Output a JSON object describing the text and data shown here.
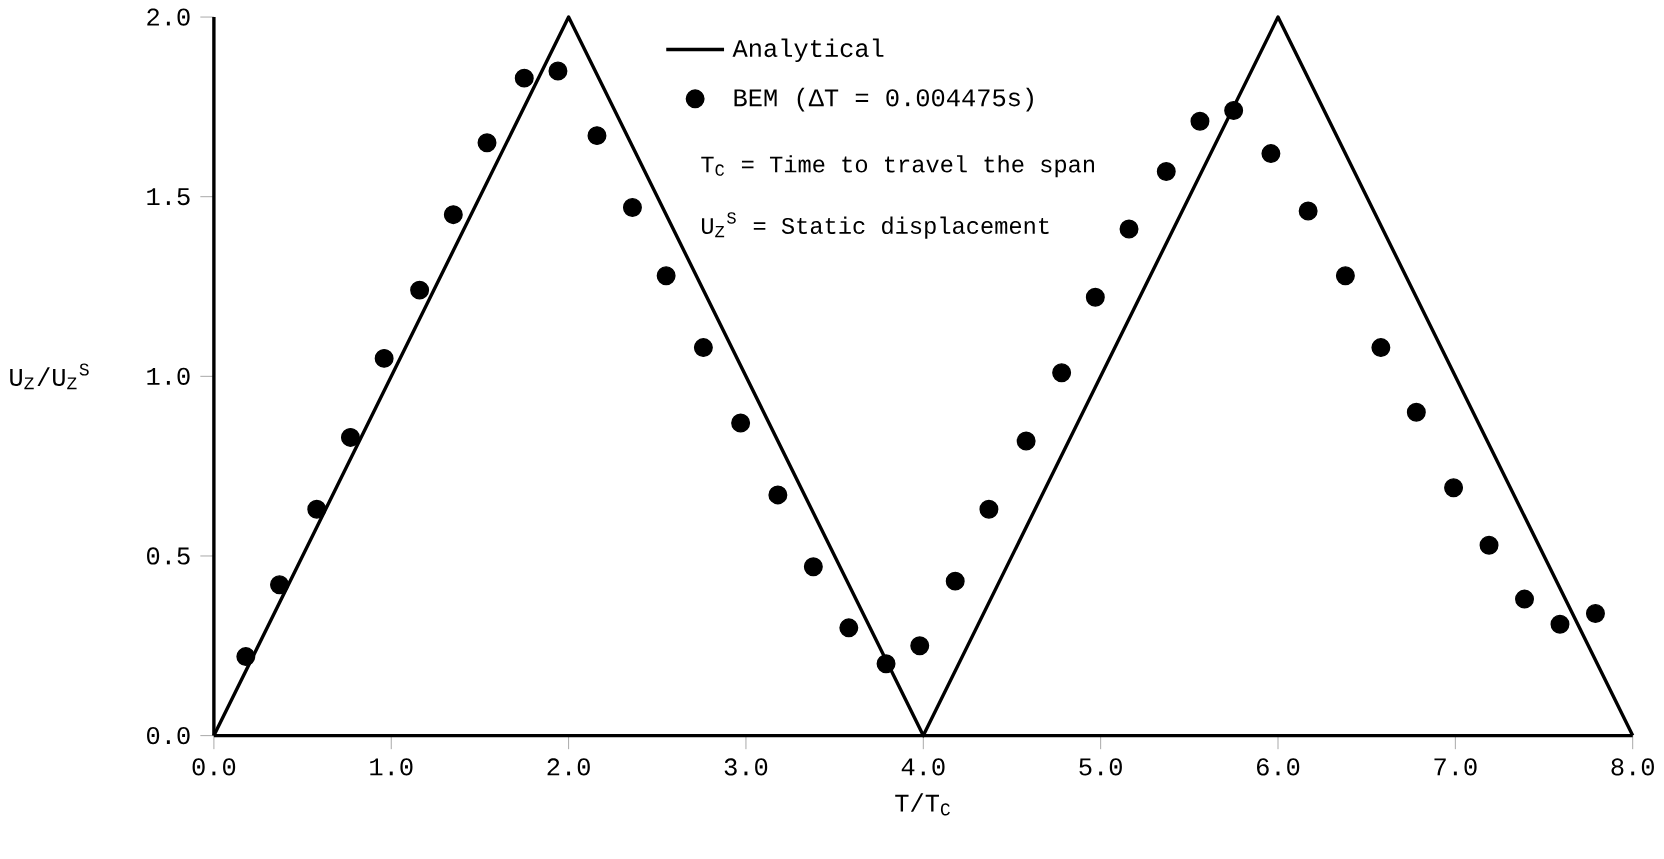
{
  "chart_data": {
    "type": "line",
    "xlabel": "T/T$_{C}$",
    "ylabel": "U$_{Z}$/U$_{Z}$$^{S}$",
    "xlim": [
      0,
      8
    ],
    "ylim": [
      0,
      2
    ],
    "xticks": [
      {
        "value": 0,
        "label": "0.0"
      },
      {
        "value": 1,
        "label": "1.0"
      },
      {
        "value": 2,
        "label": "2.0"
      },
      {
        "value": 3,
        "label": "3.0"
      },
      {
        "value": 4,
        "label": "4.0"
      },
      {
        "value": 5,
        "label": "5.0"
      },
      {
        "value": 6,
        "label": "6.0"
      },
      {
        "value": 7,
        "label": "7.0"
      },
      {
        "value": 8,
        "label": "8.0"
      }
    ],
    "yticks": [
      {
        "value": 0,
        "label": "0.0"
      },
      {
        "value": 0.5,
        "label": "0.5"
      },
      {
        "value": 1,
        "label": "1.0"
      },
      {
        "value": 1.5,
        "label": "1.5"
      },
      {
        "value": 2,
        "label": "2.0"
      }
    ],
    "legend": "top",
    "grid": false,
    "annotations": [
      "T$_{C}$ = Time to travel the span",
      "U$_{Z}$$^{S}$ = Static displacement"
    ],
    "series": [
      {
        "name": "Analytical",
        "color": "#000000",
        "marker": "none",
        "line_style": "solid",
        "x": [
          0,
          2,
          4,
          6,
          8
        ],
        "values": [
          0,
          2,
          0,
          2,
          0
        ]
      },
      {
        "name": "BEM (ΔT = 0.004475s)",
        "type": "scatter",
        "color": "#000000",
        "marker": "circle",
        "x": [
          0.18,
          0.37,
          0.58,
          0.77,
          0.96,
          1.16,
          1.35,
          1.54,
          1.75,
          1.94,
          2.16,
          2.36,
          2.55,
          2.76,
          2.97,
          3.18,
          3.38,
          3.58,
          3.79,
          3.98,
          4.18,
          4.37,
          4.58,
          4.78,
          4.97,
          5.16,
          5.37,
          5.56,
          5.75,
          5.96,
          6.17,
          6.38,
          6.58,
          6.78,
          6.99,
          7.19,
          7.39,
          7.59,
          7.79
        ],
        "values": [
          0.22,
          0.42,
          0.63,
          0.83,
          1.05,
          1.24,
          1.45,
          1.65,
          1.83,
          1.85,
          1.67,
          1.47,
          1.28,
          1.08,
          0.87,
          0.67,
          0.47,
          0.3,
          0.2,
          0.25,
          0.43,
          0.63,
          0.82,
          1.01,
          1.22,
          1.41,
          1.57,
          1.71,
          1.74,
          1.62,
          1.46,
          1.28,
          1.08,
          0.9,
          0.69,
          0.53,
          0.38,
          0.31,
          0.34
        ]
      }
    ]
  }
}
